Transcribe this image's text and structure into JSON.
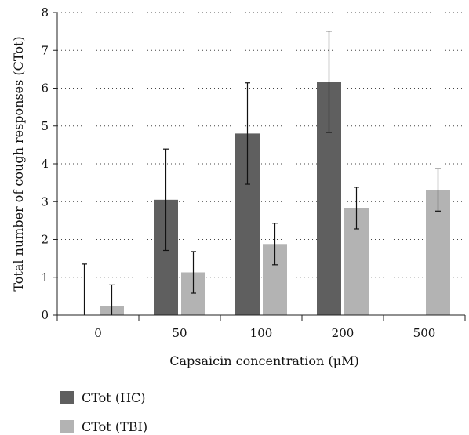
{
  "chart_data": {
    "type": "bar",
    "title": "",
    "xlabel": "Capsaicin concentration (μM)",
    "ylabel": "Total number of cough responses (CTot)",
    "categories": [
      "0",
      "50",
      "100",
      "200",
      "500"
    ],
    "ylim": [
      0,
      8
    ],
    "yticks": [
      "0",
      "1",
      "2",
      "3",
      "4",
      "5",
      "6",
      "7",
      "8"
    ],
    "grid": "horizontal dotted",
    "legend_position": "bottom-left",
    "series": [
      {
        "name": "CTot (HC)",
        "color": "#5f5f5f",
        "values": [
          0,
          3.05,
          4.8,
          6.17,
          null
        ],
        "errors": [
          1.35,
          1.34,
          1.34,
          1.34,
          null
        ]
      },
      {
        "name": "CTot (TBI)",
        "color": "#b3b3b3",
        "values": [
          0.24,
          1.13,
          1.88,
          2.83,
          3.31
        ],
        "errors": [
          0.56,
          0.55,
          0.55,
          0.55,
          0.56
        ]
      }
    ]
  }
}
